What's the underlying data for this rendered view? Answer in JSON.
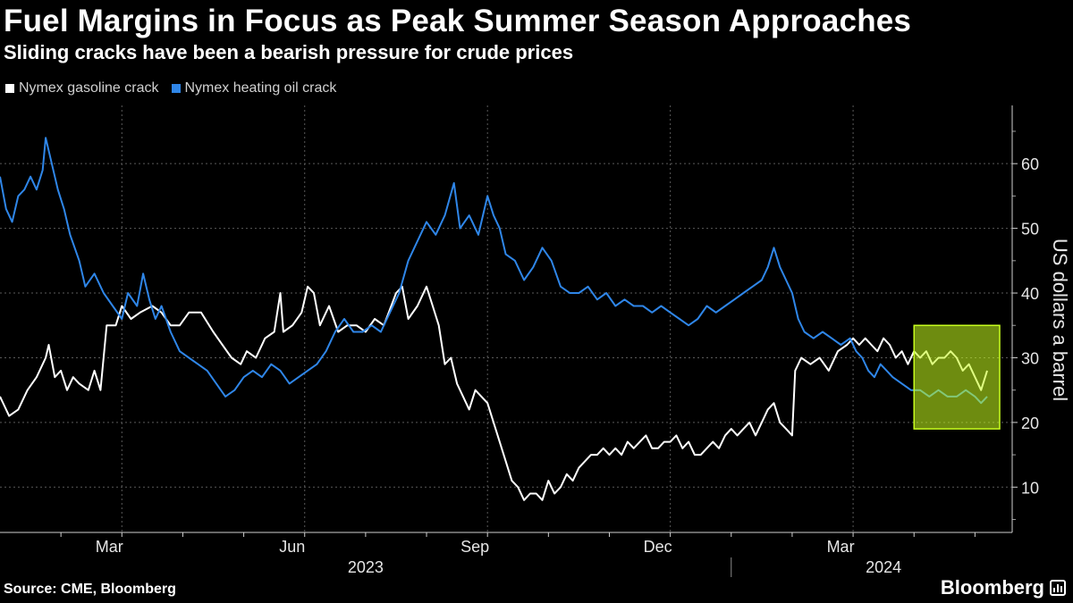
{
  "header": {
    "title": "Fuel Margins in Focus as Peak Summer Season Approaches",
    "subtitle": "Sliding cracks have been a bearish pressure for crude prices"
  },
  "footer": {
    "source": "Source: CME, Bloomberg",
    "brand": "Bloomberg"
  },
  "colors": {
    "background": "#000000",
    "gasoline": "#ffffff",
    "heating_oil": "#2f86e8",
    "highlight": "#c8ff1e"
  },
  "chart_data": {
    "type": "line",
    "title": "Fuel Margins in Focus as Peak Summer Season Approaches",
    "subtitle": "Sliding cracks have been a bearish pressure for crude prices",
    "xlabel": "",
    "ylabel": "US dollars a barrel",
    "x_range": [
      0,
      16.2
    ],
    "x_unit": "months since 2023-01-01",
    "ylim": [
      3,
      69
    ],
    "y_ticks": [
      10,
      20,
      30,
      40,
      50,
      60
    ],
    "x_ticks": [
      {
        "label": "Mar",
        "x": 2.0
      },
      {
        "label": "Jun",
        "x": 5.0
      },
      {
        "label": "Sep",
        "x": 8.0
      },
      {
        "label": "Dec",
        "x": 11.0
      },
      {
        "label": "Mar",
        "x": 14.0
      }
    ],
    "year_labels": [
      {
        "label": "2023",
        "x": 6.0
      },
      {
        "label": "2024",
        "x": 14.5
      }
    ],
    "legend": [
      "Nymex gasoline crack",
      "Nymex heating oil crack"
    ],
    "legend_position": "top-left",
    "highlight": {
      "x_start": 15.0,
      "x_end": 16.2,
      "y_start": 19,
      "y_end": 35
    },
    "series": [
      {
        "name": "Nymex gasoline crack",
        "color": "#ffffff",
        "points": [
          [
            0.0,
            24
          ],
          [
            0.15,
            21
          ],
          [
            0.3,
            22
          ],
          [
            0.45,
            25
          ],
          [
            0.6,
            27
          ],
          [
            0.75,
            30
          ],
          [
            0.8,
            32
          ],
          [
            0.9,
            27
          ],
          [
            1.0,
            28
          ],
          [
            1.1,
            25
          ],
          [
            1.2,
            27
          ],
          [
            1.3,
            26
          ],
          [
            1.45,
            25
          ],
          [
            1.55,
            28
          ],
          [
            1.65,
            25
          ],
          [
            1.75,
            35
          ],
          [
            1.9,
            35
          ],
          [
            2.0,
            38
          ],
          [
            2.15,
            36
          ],
          [
            2.3,
            37
          ],
          [
            2.5,
            38
          ],
          [
            2.65,
            37
          ],
          [
            2.8,
            35
          ],
          [
            2.95,
            35
          ],
          [
            3.1,
            37
          ],
          [
            3.3,
            37
          ],
          [
            3.5,
            34
          ],
          [
            3.65,
            32
          ],
          [
            3.8,
            30
          ],
          [
            3.95,
            29
          ],
          [
            4.05,
            31
          ],
          [
            4.2,
            30
          ],
          [
            4.35,
            33
          ],
          [
            4.5,
            34
          ],
          [
            4.6,
            40
          ],
          [
            4.65,
            34
          ],
          [
            4.8,
            35
          ],
          [
            4.95,
            37
          ],
          [
            5.05,
            41
          ],
          [
            5.15,
            40
          ],
          [
            5.25,
            35
          ],
          [
            5.4,
            38
          ],
          [
            5.55,
            34
          ],
          [
            5.7,
            35
          ],
          [
            5.85,
            35
          ],
          [
            6.0,
            34
          ],
          [
            6.15,
            36
          ],
          [
            6.3,
            35
          ],
          [
            6.5,
            40
          ],
          [
            6.6,
            41
          ],
          [
            6.7,
            36
          ],
          [
            6.85,
            38
          ],
          [
            7.0,
            41
          ],
          [
            7.1,
            38
          ],
          [
            7.2,
            35
          ],
          [
            7.3,
            29
          ],
          [
            7.4,
            30
          ],
          [
            7.5,
            26
          ],
          [
            7.6,
            24
          ],
          [
            7.7,
            22
          ],
          [
            7.8,
            25
          ],
          [
            7.9,
            24
          ],
          [
            8.0,
            23
          ],
          [
            8.1,
            20
          ],
          [
            8.2,
            17
          ],
          [
            8.3,
            14
          ],
          [
            8.4,
            11
          ],
          [
            8.5,
            10
          ],
          [
            8.6,
            8
          ],
          [
            8.7,
            9
          ],
          [
            8.8,
            9
          ],
          [
            8.9,
            8
          ],
          [
            9.0,
            11
          ],
          [
            9.1,
            9
          ],
          [
            9.2,
            10
          ],
          [
            9.3,
            12
          ],
          [
            9.4,
            11
          ],
          [
            9.5,
            13
          ],
          [
            9.6,
            14
          ],
          [
            9.7,
            15
          ],
          [
            9.8,
            15
          ],
          [
            9.9,
            16
          ],
          [
            10.0,
            15
          ],
          [
            10.1,
            16
          ],
          [
            10.2,
            15
          ],
          [
            10.3,
            17
          ],
          [
            10.4,
            16
          ],
          [
            10.5,
            17
          ],
          [
            10.6,
            18
          ],
          [
            10.7,
            16
          ],
          [
            10.8,
            16
          ],
          [
            10.9,
            17
          ],
          [
            11.0,
            17
          ],
          [
            11.1,
            18
          ],
          [
            11.2,
            16
          ],
          [
            11.3,
            17
          ],
          [
            11.4,
            15
          ],
          [
            11.5,
            15
          ],
          [
            11.6,
            16
          ],
          [
            11.7,
            17
          ],
          [
            11.8,
            16
          ],
          [
            11.9,
            18
          ],
          [
            12.0,
            19
          ],
          [
            12.1,
            18
          ],
          [
            12.2,
            19
          ],
          [
            12.3,
            20
          ],
          [
            12.4,
            18
          ],
          [
            12.5,
            20
          ],
          [
            12.6,
            22
          ],
          [
            12.7,
            23
          ],
          [
            12.8,
            20
          ],
          [
            12.9,
            19
          ],
          [
            13.0,
            18
          ],
          [
            13.05,
            28
          ],
          [
            13.15,
            30
          ],
          [
            13.3,
            29
          ],
          [
            13.45,
            30
          ],
          [
            13.6,
            28
          ],
          [
            13.75,
            31
          ],
          [
            13.9,
            32
          ],
          [
            14.0,
            33
          ],
          [
            14.1,
            32
          ],
          [
            14.2,
            33
          ],
          [
            14.3,
            32
          ],
          [
            14.4,
            31
          ],
          [
            14.5,
            33
          ],
          [
            14.6,
            32
          ],
          [
            14.7,
            30
          ],
          [
            14.8,
            31
          ],
          [
            14.9,
            29
          ],
          [
            15.0,
            31
          ],
          [
            15.1,
            30
          ],
          [
            15.2,
            31
          ],
          [
            15.3,
            29
          ],
          [
            15.4,
            30
          ],
          [
            15.5,
            30
          ],
          [
            15.6,
            31
          ],
          [
            15.7,
            30
          ],
          [
            15.8,
            28
          ],
          [
            15.9,
            29
          ],
          [
            16.0,
            27
          ],
          [
            16.1,
            25
          ],
          [
            16.2,
            28
          ]
        ]
      },
      {
        "name": "Nymex heating oil crack",
        "color": "#2f86e8",
        "points": [
          [
            0.0,
            58
          ],
          [
            0.1,
            53
          ],
          [
            0.2,
            51
          ],
          [
            0.3,
            55
          ],
          [
            0.4,
            56
          ],
          [
            0.5,
            58
          ],
          [
            0.6,
            56
          ],
          [
            0.7,
            59
          ],
          [
            0.75,
            64
          ],
          [
            0.85,
            60
          ],
          [
            0.95,
            56
          ],
          [
            1.05,
            53
          ],
          [
            1.15,
            49
          ],
          [
            1.3,
            45
          ],
          [
            1.4,
            41
          ],
          [
            1.55,
            43
          ],
          [
            1.7,
            40
          ],
          [
            1.85,
            38
          ],
          [
            2.0,
            36
          ],
          [
            2.1,
            40
          ],
          [
            2.25,
            38
          ],
          [
            2.35,
            43
          ],
          [
            2.45,
            39
          ],
          [
            2.55,
            36
          ],
          [
            2.65,
            38
          ],
          [
            2.8,
            34
          ],
          [
            2.95,
            31
          ],
          [
            3.1,
            30
          ],
          [
            3.25,
            29
          ],
          [
            3.4,
            28
          ],
          [
            3.55,
            26
          ],
          [
            3.7,
            24
          ],
          [
            3.85,
            25
          ],
          [
            4.0,
            27
          ],
          [
            4.15,
            28
          ],
          [
            4.3,
            27
          ],
          [
            4.45,
            29
          ],
          [
            4.6,
            28
          ],
          [
            4.75,
            26
          ],
          [
            4.9,
            27
          ],
          [
            5.05,
            28
          ],
          [
            5.2,
            29
          ],
          [
            5.35,
            31
          ],
          [
            5.5,
            34
          ],
          [
            5.65,
            36
          ],
          [
            5.8,
            34
          ],
          [
            5.95,
            34
          ],
          [
            6.1,
            35
          ],
          [
            6.25,
            34
          ],
          [
            6.4,
            37
          ],
          [
            6.55,
            40
          ],
          [
            6.7,
            45
          ],
          [
            6.85,
            48
          ],
          [
            7.0,
            51
          ],
          [
            7.15,
            49
          ],
          [
            7.3,
            52
          ],
          [
            7.45,
            57
          ],
          [
            7.55,
            50
          ],
          [
            7.7,
            52
          ],
          [
            7.85,
            49
          ],
          [
            8.0,
            55
          ],
          [
            8.1,
            52
          ],
          [
            8.2,
            50
          ],
          [
            8.3,
            46
          ],
          [
            8.45,
            45
          ],
          [
            8.6,
            42
          ],
          [
            8.75,
            44
          ],
          [
            8.9,
            47
          ],
          [
            9.05,
            45
          ],
          [
            9.2,
            41
          ],
          [
            9.35,
            40
          ],
          [
            9.5,
            40
          ],
          [
            9.65,
            41
          ],
          [
            9.8,
            39
          ],
          [
            9.95,
            40
          ],
          [
            10.1,
            38
          ],
          [
            10.25,
            39
          ],
          [
            10.4,
            38
          ],
          [
            10.55,
            38
          ],
          [
            10.7,
            37
          ],
          [
            10.85,
            38
          ],
          [
            11.0,
            37
          ],
          [
            11.15,
            36
          ],
          [
            11.3,
            35
          ],
          [
            11.45,
            36
          ],
          [
            11.6,
            38
          ],
          [
            11.75,
            37
          ],
          [
            11.9,
            38
          ],
          [
            12.05,
            39
          ],
          [
            12.2,
            40
          ],
          [
            12.35,
            41
          ],
          [
            12.5,
            42
          ],
          [
            12.6,
            44
          ],
          [
            12.7,
            47
          ],
          [
            12.8,
            44
          ],
          [
            12.9,
            42
          ],
          [
            13.0,
            40
          ],
          [
            13.1,
            36
          ],
          [
            13.2,
            34
          ],
          [
            13.35,
            33
          ],
          [
            13.5,
            34
          ],
          [
            13.65,
            33
          ],
          [
            13.8,
            32
          ],
          [
            13.95,
            33
          ],
          [
            14.05,
            31
          ],
          [
            14.15,
            30
          ],
          [
            14.25,
            28
          ],
          [
            14.35,
            27
          ],
          [
            14.45,
            29
          ],
          [
            14.55,
            28
          ],
          [
            14.65,
            27
          ],
          [
            14.8,
            26
          ],
          [
            14.95,
            25
          ],
          [
            15.1,
            25
          ],
          [
            15.25,
            24
          ],
          [
            15.4,
            25
          ],
          [
            15.55,
            24
          ],
          [
            15.7,
            24
          ],
          [
            15.85,
            25
          ],
          [
            16.0,
            24
          ],
          [
            16.1,
            23
          ],
          [
            16.2,
            24
          ]
        ]
      }
    ]
  }
}
